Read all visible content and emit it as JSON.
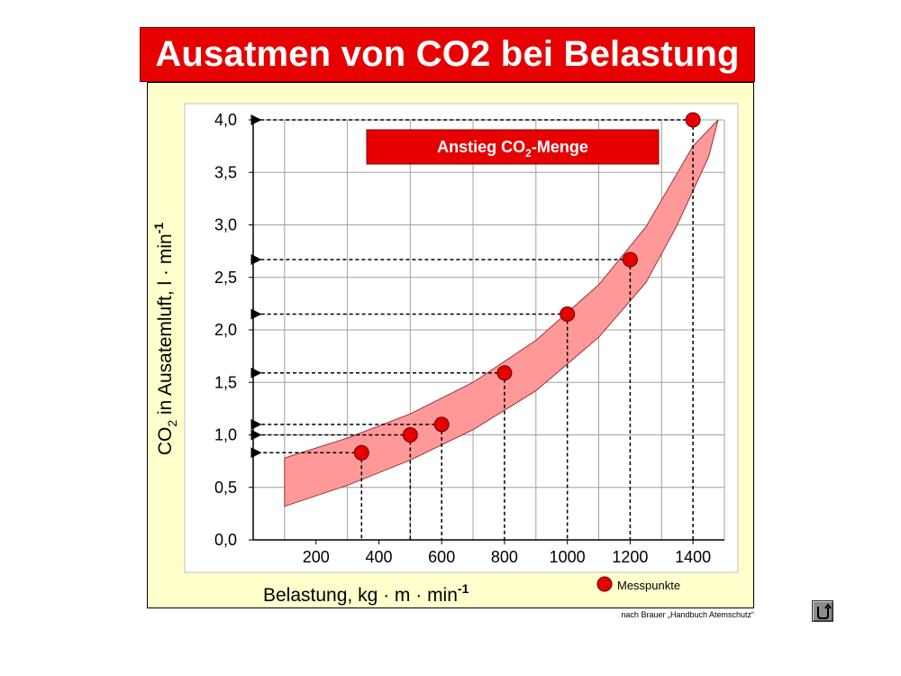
{
  "title": "Ausatmen von CO2 bei Belastung",
  "source_note": "nach Brauer „Handbuch Atemschutz“",
  "colors": {
    "banner": "#e60000",
    "panel": "#ffffcc",
    "band": "#ff9999",
    "points": "#e60000"
  },
  "chart_data": {
    "type": "scatter",
    "annotation": {
      "text": "Anstieg CO",
      "subscript": "2",
      "suffix": "-Menge"
    },
    "xlabel": {
      "text": "Belastung, kg · m · min",
      "superscript": "-1"
    },
    "ylabel": {
      "prefix": "CO",
      "subscript": "2",
      "text": " in Ausatemluft, l · min",
      "superscript": "-1"
    },
    "x_ticks": [
      "200",
      "400",
      "600",
      "800",
      "1000",
      "1200",
      "1400"
    ],
    "y_ticks": [
      "0,0",
      "0,5",
      "1,0",
      "1,5",
      "2,0",
      "2,5",
      "3,0",
      "3,5",
      "4,0"
    ],
    "xlim": [
      100,
      1500
    ],
    "ylim": [
      0,
      4
    ],
    "grid": true,
    "legend": {
      "label": "Messpunkte",
      "placement": "bottom-right"
    },
    "series": [
      {
        "name": "Messpunkte",
        "points": [
          {
            "x": 345,
            "y": 0.83
          },
          {
            "x": 500,
            "y": 1.0
          },
          {
            "x": 600,
            "y": 1.1
          },
          {
            "x": 800,
            "y": 1.59
          },
          {
            "x": 1000,
            "y": 2.15
          },
          {
            "x": 1200,
            "y": 2.67
          },
          {
            "x": 1400,
            "y": 4.0
          }
        ]
      }
    ],
    "trend_band": {
      "upper": [
        [
          100,
          0.78
        ],
        [
          300,
          0.97
        ],
        [
          500,
          1.2
        ],
        [
          700,
          1.5
        ],
        [
          900,
          1.9
        ],
        [
          1100,
          2.43
        ],
        [
          1250,
          2.98
        ],
        [
          1400,
          3.75
        ],
        [
          1480,
          4.0
        ]
      ],
      "lower": [
        [
          100,
          0.32
        ],
        [
          300,
          0.52
        ],
        [
          500,
          0.76
        ],
        [
          700,
          1.05
        ],
        [
          900,
          1.42
        ],
        [
          1100,
          1.93
        ],
        [
          1250,
          2.45
        ],
        [
          1350,
          3.0
        ],
        [
          1450,
          3.65
        ],
        [
          1480,
          4.0
        ]
      ]
    }
  },
  "nav": {
    "back_icon": "return-arrow-icon"
  }
}
